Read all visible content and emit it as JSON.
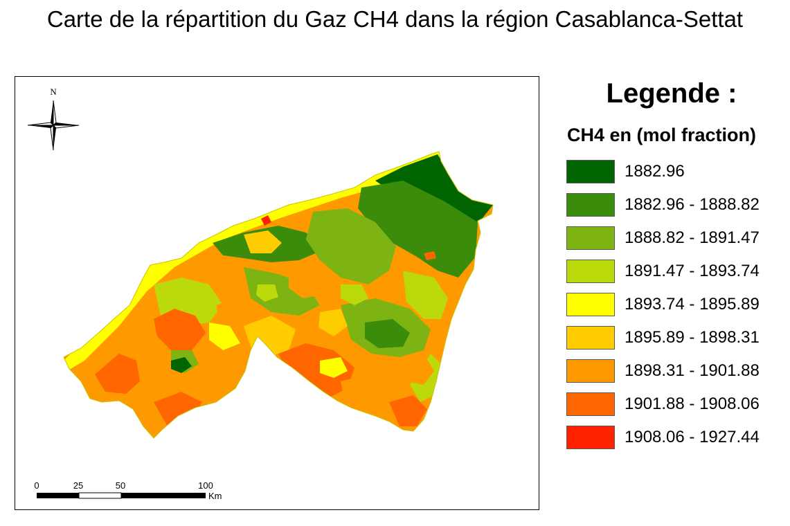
{
  "title": "Carte de la répartition du Gaz CH4 dans la région Casablanca-Settat",
  "legend": {
    "title": "Legende :",
    "subtitle": "CH4 en (mol fraction)",
    "classes": [
      {
        "label": "1882.96",
        "color": "#006400"
      },
      {
        "label": "1882.96 - 1888.82",
        "color": "#3a8c0a"
      },
      {
        "label": "1888.82 - 1891.47",
        "color": "#7db312"
      },
      {
        "label": "1891.47 - 1893.74",
        "color": "#bcd90b"
      },
      {
        "label": "1893.74 - 1895.89",
        "color": "#ffff00"
      },
      {
        "label": "1895.89 - 1898.31",
        "color": "#ffcc00"
      },
      {
        "label": "1898.31 - 1901.88",
        "color": "#ff9900"
      },
      {
        "label": "1901.88 - 1908.06",
        "color": "#ff6600"
      },
      {
        "label": "1908.06 - 1927.44",
        "color": "#ff2200"
      }
    ]
  },
  "north_arrow": {
    "label": "N"
  },
  "scale_bar": {
    "ticks": [
      "0",
      "25",
      "50",
      "100"
    ],
    "unit": "Km"
  }
}
